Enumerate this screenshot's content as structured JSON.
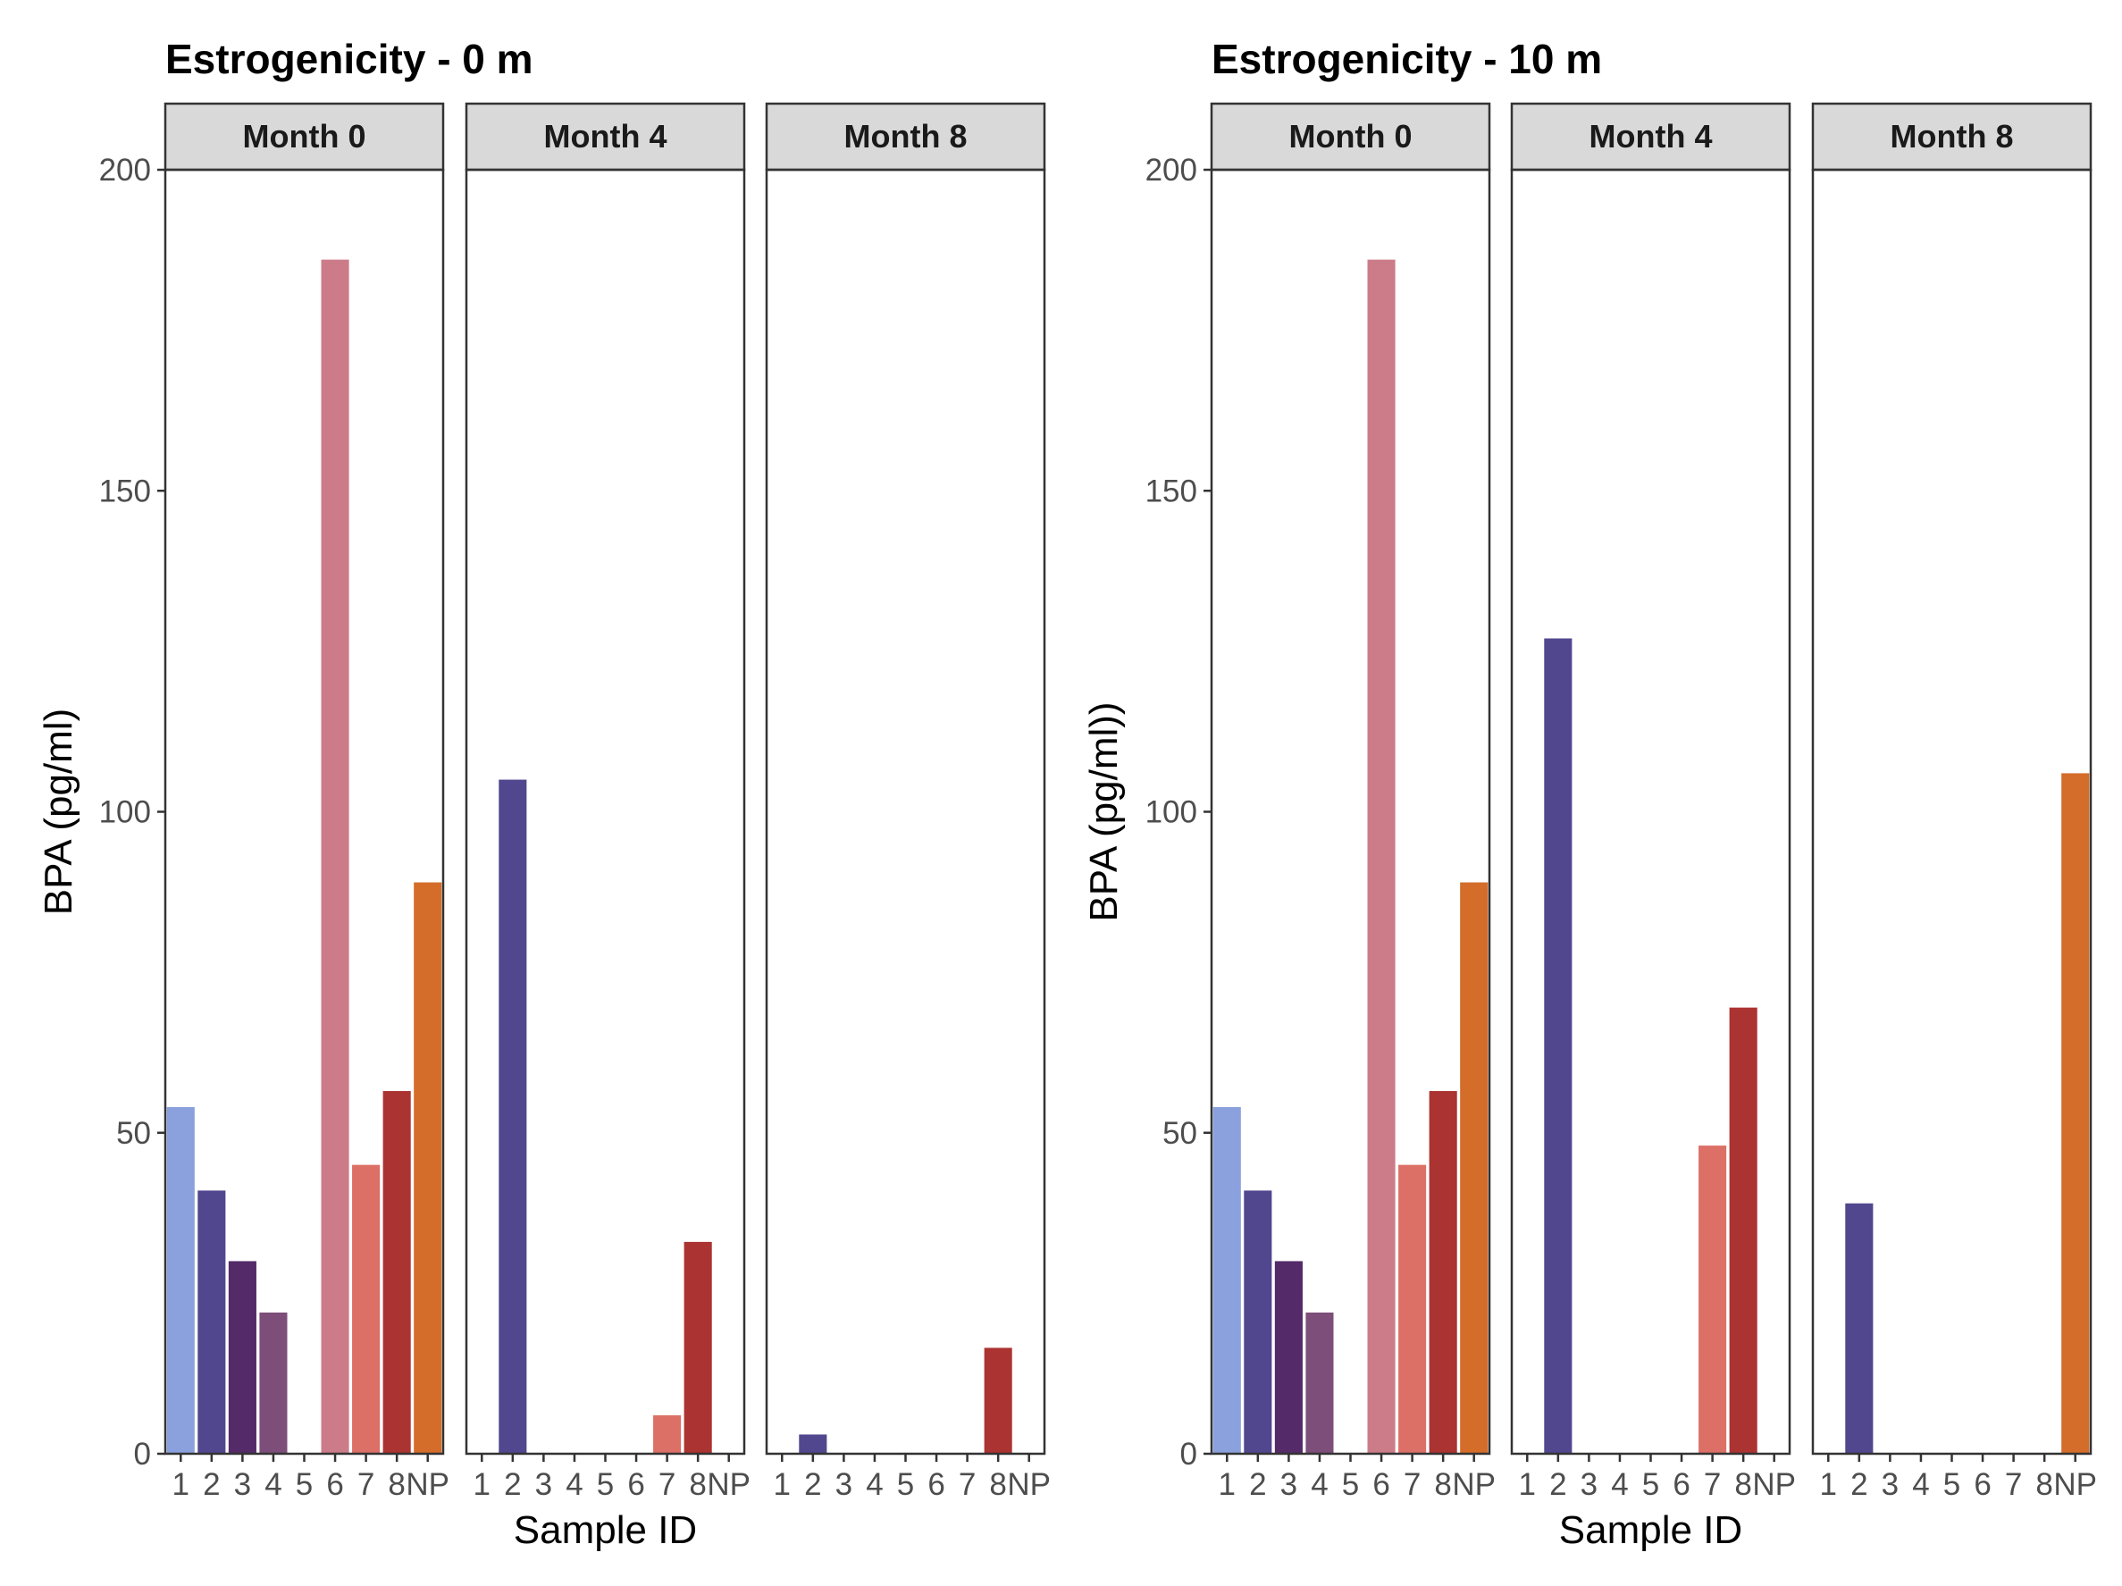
{
  "chart_data": [
    {
      "type": "bar",
      "title": "Estrogenicity - 0 m",
      "ylabel": "BPA (pg/ml)",
      "xlabel": "Sample ID",
      "ylim": [
        0,
        200
      ],
      "yticks": [
        0,
        50,
        100,
        150,
        200
      ],
      "categories": [
        "1",
        "2",
        "3",
        "4",
        "5",
        "6",
        "7",
        "8",
        "NP"
      ],
      "colors": [
        "#8aa1dd",
        "#51478e",
        "#542a68",
        "#7c4e79",
        "#c1607f",
        "#cb7c88",
        "#dc7066",
        "#ab3331",
        "#d46c2a"
      ],
      "grid": false,
      "legend": "none",
      "panels": [
        {
          "label": "Month 0",
          "values": [
            54,
            41,
            30,
            22,
            0,
            186,
            45,
            56.5,
            89
          ]
        },
        {
          "label": "Month 4",
          "values": [
            0,
            105,
            0,
            0,
            0,
            0,
            6,
            33,
            0
          ]
        },
        {
          "label": "Month 8",
          "values": [
            0,
            3,
            0,
            0,
            0,
            0,
            0,
            16.5,
            0
          ]
        }
      ]
    },
    {
      "type": "bar",
      "title": "Estrogenicity - 10 m",
      "ylabel": "BPA (pg/ml))",
      "xlabel": "Sample ID",
      "ylim": [
        0,
        200
      ],
      "yticks": [
        0,
        50,
        100,
        150,
        200
      ],
      "categories": [
        "1",
        "2",
        "3",
        "4",
        "5",
        "6",
        "7",
        "8",
        "NP"
      ],
      "colors": [
        "#8aa1dd",
        "#51478e",
        "#542a68",
        "#7c4e79",
        "#c1607f",
        "#cb7c88",
        "#dc7066",
        "#ab3331",
        "#d46c2a"
      ],
      "grid": false,
      "legend": "none",
      "panels": [
        {
          "label": "Month 0",
          "values": [
            54,
            41,
            30,
            22,
            0,
            186,
            45,
            56.5,
            89
          ]
        },
        {
          "label": "Month 4",
          "values": [
            0,
            127,
            0,
            0,
            0,
            0,
            48,
            69.5,
            0
          ]
        },
        {
          "label": "Month 8",
          "values": [
            0,
            39,
            0,
            0,
            0,
            0,
            0,
            0,
            106
          ]
        }
      ]
    }
  ]
}
